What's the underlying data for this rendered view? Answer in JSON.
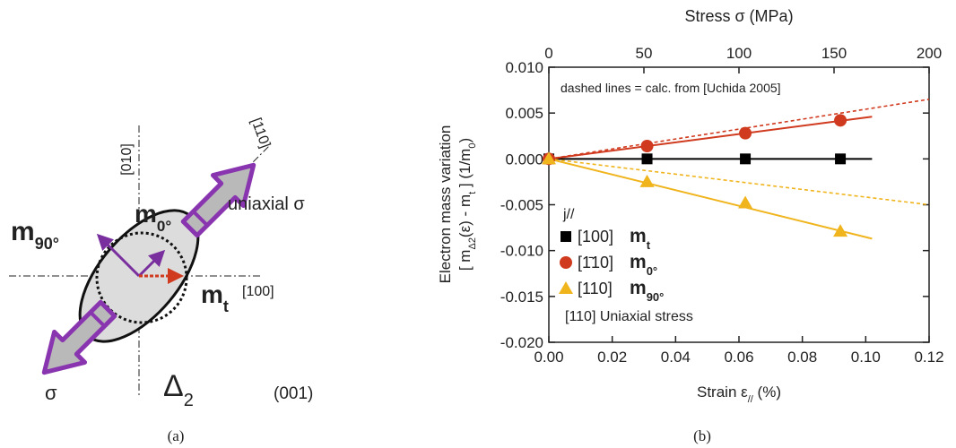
{
  "diagram": {
    "axis_010": "[010]",
    "axis_110": "[110]",
    "axis_100": "[100]",
    "stress_label": "uniaxial σ",
    "sigma": "σ",
    "m90": {
      "t": "m",
      "sub": "90°"
    },
    "m0": {
      "t": "m",
      "sub": "0°"
    },
    "mt": {
      "t": "m",
      "sub": "t"
    },
    "valley": {
      "t": "Δ",
      "sub": "2"
    },
    "plane": "(001)",
    "caption": "(a)"
  },
  "chart_caption": "(b)",
  "chart_data": {
    "type": "scatter",
    "x2label": "Stress σ (MPa)",
    "xlabel": [
      {
        "t": "Strain ε"
      },
      {
        "t": "//",
        "sub": true
      },
      {
        "t": " (%)"
      }
    ],
    "ylabel": "Electron mass variation",
    "ylabel2": [
      {
        "t": "[ m"
      },
      {
        "t": "Δ2",
        "sub": true
      },
      {
        "t": "(ε) - m"
      },
      {
        "t": "t",
        "sub": true
      },
      {
        "t": " ]    (1/m"
      },
      {
        "t": "0",
        "sub": true
      },
      {
        "t": ")"
      }
    ],
    "xlim": [
      0,
      0.12
    ],
    "xticks": [
      {
        "value": 0,
        "label": "0.00"
      },
      {
        "value": 0.02,
        "label": "0.02"
      },
      {
        "value": 0.04,
        "label": "0.04"
      },
      {
        "value": 0.06,
        "label": "0.06"
      },
      {
        "value": 0.08,
        "label": "0.08"
      },
      {
        "value": 0.1,
        "label": "0.10"
      },
      {
        "value": 0.12,
        "label": "0.12"
      }
    ],
    "x2lim": [
      0,
      200
    ],
    "x2ticks": [
      0,
      50,
      100,
      150,
      200
    ],
    "ylim": [
      -0.02,
      0.01
    ],
    "yticks": [
      {
        "value": -0.02,
        "label": "-0.020"
      },
      {
        "value": -0.015,
        "label": "-0.015"
      },
      {
        "value": -0.01,
        "label": "-0.010"
      },
      {
        "value": -0.005,
        "label": "-0.005"
      },
      {
        "value": 0,
        "label": "0.000"
      },
      {
        "value": 0.005,
        "label": "0.005"
      },
      {
        "value": 0.01,
        "label": "0.010"
      }
    ],
    "annotations": [
      "dashed lines = calc. from [Uchida 2005]",
      "[110] Uniaxial stress"
    ],
    "legend_title": "j//",
    "series": [
      {
        "name": "[100]",
        "mass": {
          "t": "m",
          "sub": "t"
        },
        "marker": "square",
        "color": "#000000",
        "x": [
          0,
          0.031,
          0.062,
          0.092
        ],
        "values": [
          0,
          0,
          0,
          0
        ]
      },
      {
        "name": "[1̄10]",
        "mass": {
          "t": "m",
          "sub": "0°"
        },
        "marker": "circle",
        "color": "#d03a1e",
        "x": [
          0,
          0.031,
          0.062,
          0.092
        ],
        "values": [
          0,
          0.0014,
          0.0028,
          0.0042
        ]
      },
      {
        "name": "[110]",
        "mass": {
          "t": "m",
          "sub": "90°"
        },
        "marker": "triangle",
        "color": "#f0b41c",
        "x": [
          0,
          0.031,
          0.062,
          0.092
        ],
        "values": [
          0,
          -0.0025,
          -0.0048,
          -0.0079
        ]
      }
    ],
    "fits": [
      {
        "color": "#000000",
        "dashed": false,
        "x": [
          0,
          0.102
        ],
        "values": [
          0,
          0
        ]
      },
      {
        "color": "#d03a1e",
        "dashed": false,
        "x": [
          0,
          0.102
        ],
        "values": [
          0,
          0.0046
        ]
      },
      {
        "color": "#d03a1e",
        "dashed": true,
        "x": [
          0,
          0.12
        ],
        "values": [
          0,
          0.0065
        ]
      },
      {
        "color": "#f0b41c",
        "dashed": false,
        "x": [
          0,
          0.102
        ],
        "values": [
          0,
          -0.0087
        ]
      },
      {
        "color": "#f0b41c",
        "dashed": true,
        "x": [
          0,
          0.12
        ],
        "values": [
          0,
          -0.005
        ]
      }
    ]
  }
}
